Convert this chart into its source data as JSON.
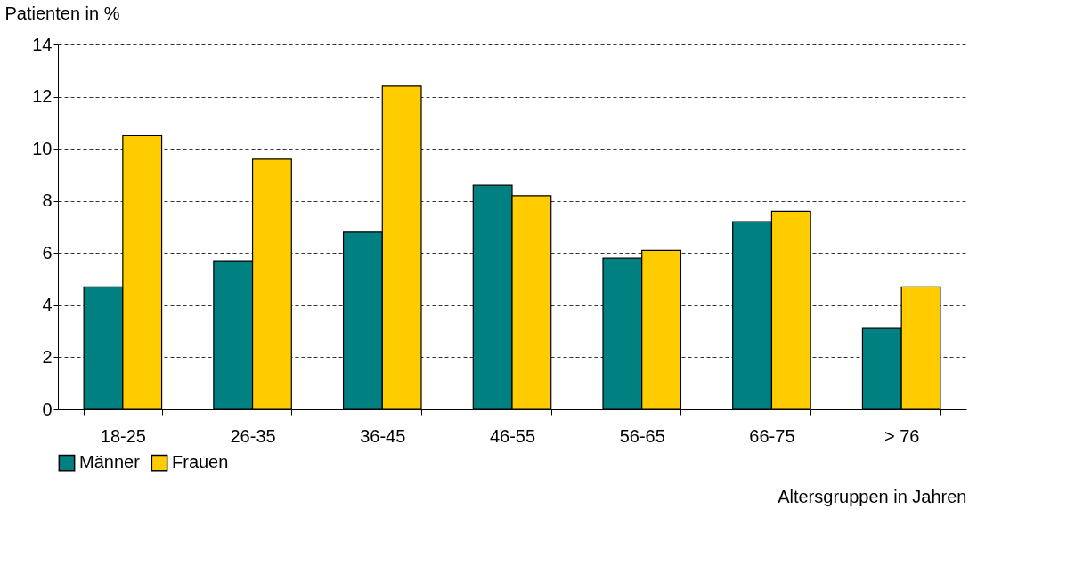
{
  "chart_data": {
    "type": "bar",
    "ylabel": "Patienten in %",
    "xlabel": "Altersgruppen in Jahren",
    "categories": [
      "18-25",
      "26-35",
      "36-45",
      "46-55",
      "56-65",
      "66-75",
      "> 76"
    ],
    "series": [
      {
        "name": "Männer",
        "color": "#008080",
        "values": [
          4.7,
          5.7,
          6.8,
          8.6,
          5.8,
          7.2,
          3.1
        ]
      },
      {
        "name": "Frauen",
        "color": "#ffcc00",
        "values": [
          10.5,
          9.6,
          12.4,
          8.2,
          6.1,
          7.6,
          4.7
        ]
      }
    ],
    "ylim": [
      0,
      14
    ],
    "yticks": [
      0,
      2,
      4,
      6,
      8,
      10,
      12,
      14
    ],
    "grid": "y",
    "line_style": "dashed",
    "legend": "bottom left"
  }
}
